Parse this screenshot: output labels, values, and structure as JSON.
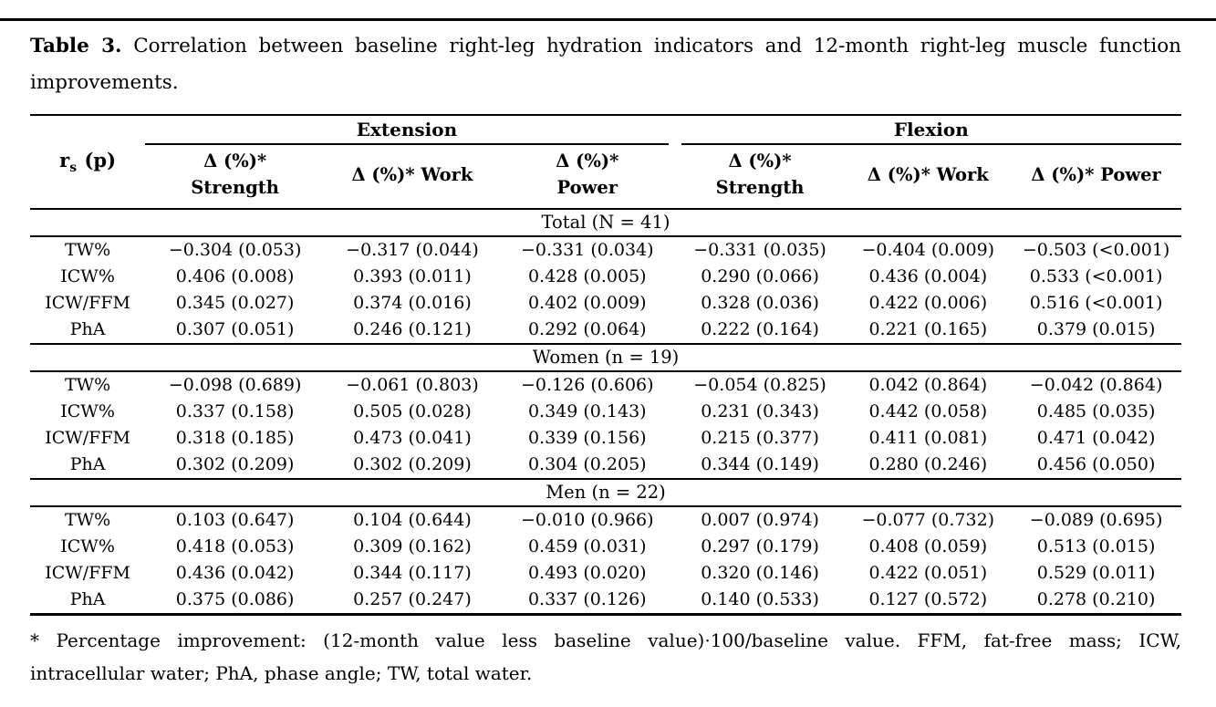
{
  "page": {
    "title_bold": "Table 3.",
    "title_line1_rest": "Correlation between baseline right-leg hydration indicators and 12-month right-leg muscle function",
    "title_line2": "improvements.",
    "footnote_line1": "* Percentage improvement: (12-month value less baseline value)·100/baseline value. FFM, fat-free mass; ICW,",
    "footnote_line2": "intracellular water; PhA, phase angle; TW, total water."
  },
  "table": {
    "corner": {
      "base": "r",
      "sub": "s",
      "rest": " (p)"
    },
    "groups": [
      "Extension",
      "Flexion"
    ],
    "subheaders": [
      "Δ (%)*\nStrength",
      "Δ (%)* Work",
      "Δ (%)*\nPower",
      "Δ (%)*\nStrength",
      "Δ (%)* Work",
      "Δ (%)* Power"
    ],
    "sections": [
      {
        "label": "Total (N = 41)",
        "rows": [
          {
            "label": "TW%",
            "values": [
              "−0.304 (0.053)",
              "−0.317 (0.044)",
              "−0.331 (0.034)",
              "−0.331 (0.035)",
              "−0.404 (0.009)",
              "−0.503 (<0.001)"
            ]
          },
          {
            "label": "ICW%",
            "values": [
              "0.406 (0.008)",
              "0.393 (0.011)",
              "0.428 (0.005)",
              "0.290 (0.066)",
              "0.436 (0.004)",
              "0.533 (<0.001)"
            ]
          },
          {
            "label": "ICW/FFM",
            "values": [
              "0.345 (0.027)",
              "0.374 (0.016)",
              "0.402 (0.009)",
              "0.328 (0.036)",
              "0.422 (0.006)",
              "0.516 (<0.001)"
            ]
          },
          {
            "label": "PhA",
            "values": [
              "0.307 (0.051)",
              "0.246 (0.121)",
              "0.292 (0.064)",
              "0.222 (0.164)",
              "0.221 (0.165)",
              "0.379 (0.015)"
            ]
          }
        ]
      },
      {
        "label": "Women (n = 19)",
        "rows": [
          {
            "label": "TW%",
            "values": [
              "−0.098 (0.689)",
              "−0.061 (0.803)",
              "−0.126 (0.606)",
              "−0.054 (0.825)",
              "0.042 (0.864)",
              "−0.042 (0.864)"
            ]
          },
          {
            "label": "ICW%",
            "values": [
              "0.337 (0.158)",
              "0.505 (0.028)",
              "0.349 (0.143)",
              "0.231 (0.343)",
              "0.442 (0.058)",
              "0.485 (0.035)"
            ]
          },
          {
            "label": "ICW/FFM",
            "values": [
              "0.318 (0.185)",
              "0.473 (0.041)",
              "0.339 (0.156)",
              "0.215 (0.377)",
              "0.411 (0.081)",
              "0.471 (0.042)"
            ]
          },
          {
            "label": "PhA",
            "values": [
              "0.302 (0.209)",
              "0.302 (0.209)",
              "0.304 (0.205)",
              "0.344 (0.149)",
              "0.280 (0.246)",
              "0.456 (0.050)"
            ]
          }
        ]
      },
      {
        "label": "Men (n = 22)",
        "rows": [
          {
            "label": "TW%",
            "values": [
              "0.103 (0.647)",
              "0.104 (0.644)",
              "−0.010 (0.966)",
              "0.007 (0.974)",
              "−0.077 (0.732)",
              "−0.089 (0.695)"
            ]
          },
          {
            "label": "ICW%",
            "values": [
              "0.418 (0.053)",
              "0.309 (0.162)",
              "0.459 (0.031)",
              "0.297 (0.179)",
              "0.408 (0.059)",
              "0.513 (0.015)"
            ]
          },
          {
            "label": "ICW/FFM",
            "values": [
              "0.436 (0.042)",
              "0.344 (0.117)",
              "0.493 (0.020)",
              "0.320 (0.146)",
              "0.422 (0.051)",
              "0.529 (0.011)"
            ]
          },
          {
            "label": "PhA",
            "values": [
              "0.375 (0.086)",
              "0.257 (0.247)",
              "0.337 (0.126)",
              "0.140 (0.533)",
              "0.127 (0.572)",
              "0.278 (0.210)"
            ]
          }
        ]
      }
    ]
  }
}
